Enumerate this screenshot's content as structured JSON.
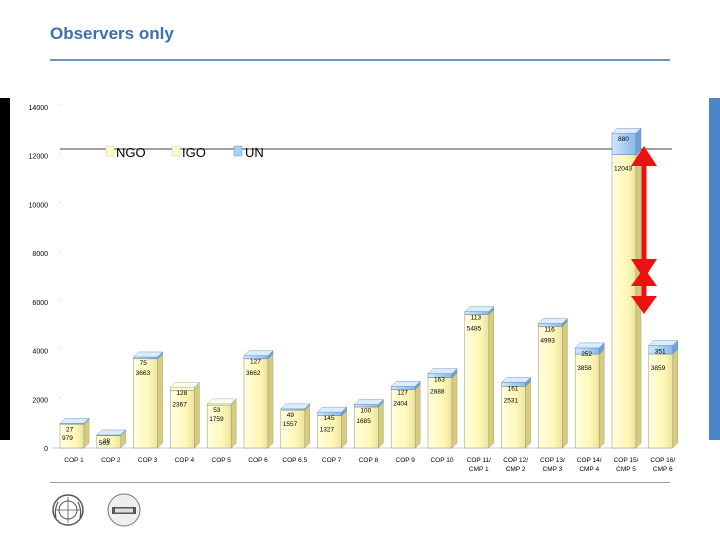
{
  "slide": {
    "title": "Observers only"
  },
  "colors": {
    "ngo": "#fffcc8",
    "igo": "#f5fdd8",
    "un": "#a9cff4",
    "arrow": "#ee1111",
    "title": "#3a6fb3"
  },
  "chart_data": {
    "type": "bar",
    "stacked": true,
    "title": "",
    "xlabel": "",
    "ylabel": "",
    "ylim": [
      0,
      14000
    ],
    "y_ticks": [
      0,
      2000,
      4000,
      6000,
      8000,
      10000,
      12000,
      14000
    ],
    "legend": [
      "NGO",
      "IGO",
      "UN"
    ],
    "legend_position": "top-left",
    "categories": [
      [
        "COP 1"
      ],
      [
        "COP 2"
      ],
      [
        "COP 3"
      ],
      [
        "COP 4"
      ],
      [
        "COP 5"
      ],
      [
        "COP 6"
      ],
      [
        "COP 6.5"
      ],
      [
        "COP 7"
      ],
      [
        "COP 8"
      ],
      [
        "COP 9"
      ],
      [
        "COP 10"
      ],
      [
        "COP 11/",
        "CMP 1"
      ],
      [
        "COP 12/",
        "CMP 2"
      ],
      [
        "COP 13/",
        "CMP 3"
      ],
      [
        "COP 14/",
        "CMP 4"
      ],
      [
        "COP 15/",
        "CMP 5"
      ],
      [
        "COP 16/",
        "CMP 6"
      ]
    ],
    "series": [
      {
        "name": "NGO",
        "values": [
          979,
          503,
          3663,
          2367,
          1759,
          3662,
          1557,
          1327,
          1685,
          2404,
          2888,
          5485,
          2531,
          4993,
          3858,
          12043,
          3859
        ]
      },
      {
        "name": "IGO",
        "values": [
          0,
          0,
          0,
          128,
          53,
          0,
          0,
          0,
          0,
          0,
          0,
          0,
          0,
          0,
          0,
          0,
          0
        ]
      },
      {
        "name": "UN",
        "values": [
          27,
          28,
          75,
          0,
          0,
          127,
          49,
          145,
          100,
          127,
          163,
          113,
          161,
          116,
          252,
          880,
          351
        ]
      }
    ],
    "value_labels": [
      [
        "979",
        "27"
      ],
      [
        "503",
        "28"
      ],
      [
        "3663",
        "75"
      ],
      [
        "2367",
        "128"
      ],
      [
        "1759",
        "53"
      ],
      [
        "3662",
        "127"
      ],
      [
        "1557",
        "49"
      ],
      [
        "1327",
        "145"
      ],
      [
        "1685",
        "100"
      ],
      [
        "2404",
        "127"
      ],
      [
        "2888",
        "163"
      ],
      [
        "5485",
        "113"
      ],
      [
        "2531",
        "161"
      ],
      [
        "4993",
        "116"
      ],
      [
        "3858",
        "252"
      ],
      [
        "12043",
        "880"
      ],
      [
        "3859",
        "351"
      ]
    ],
    "annotations": [
      "double-headed red arrow beside COP 15/CMP 5 bar"
    ]
  }
}
